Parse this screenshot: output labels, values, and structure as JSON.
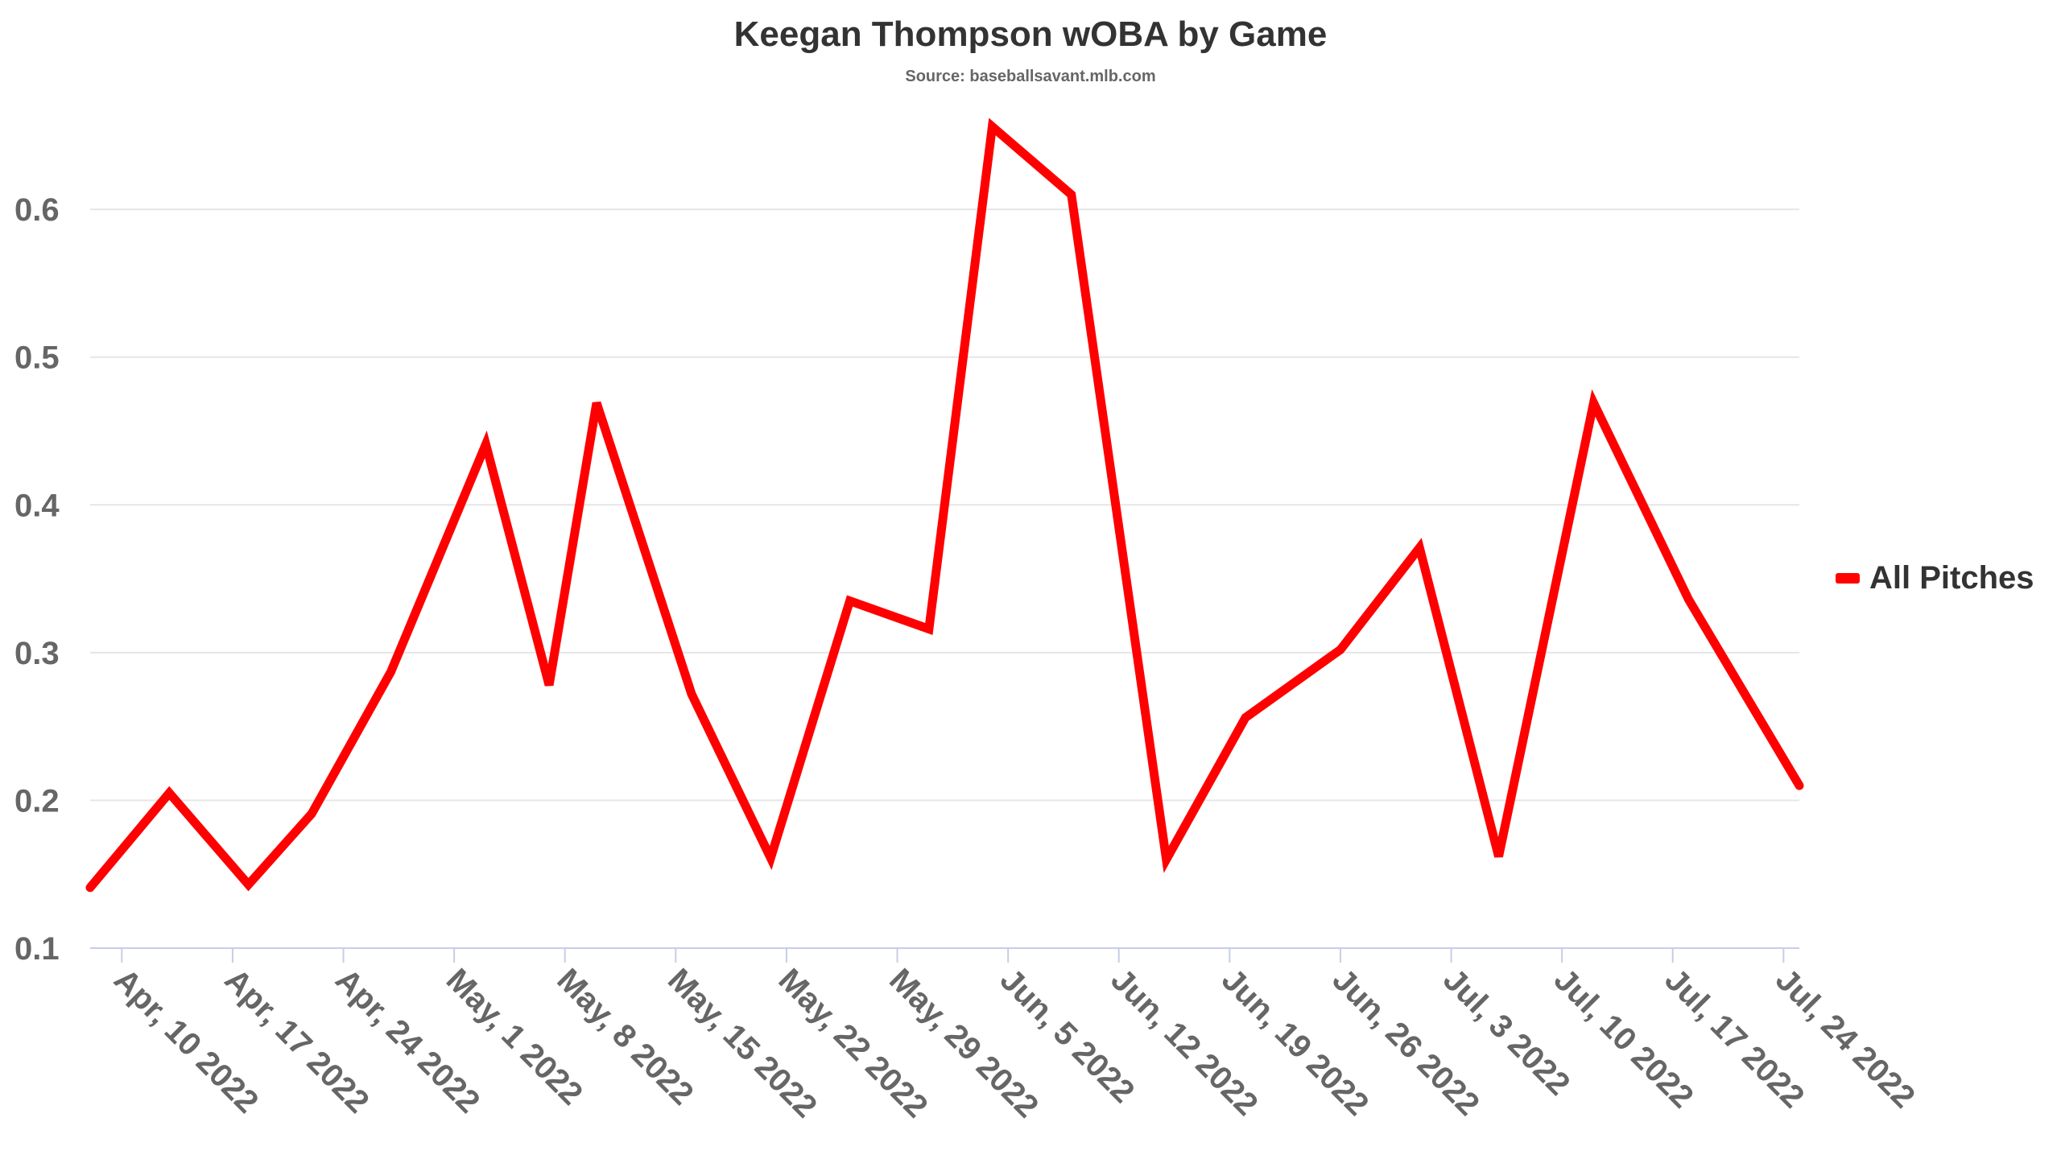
{
  "chart_data": {
    "type": "line",
    "title": "Keegan Thompson wOBA by Game",
    "subtitle": "Source: baseballsavant.mlb.com",
    "xlabel": "",
    "ylabel": "",
    "ylim": [
      0.1,
      0.66
    ],
    "y_ticks": [
      0.1,
      0.2,
      0.3,
      0.4,
      0.5,
      0.6
    ],
    "y_tick_labels": [
      "0.1",
      "0.2",
      "0.3",
      "0.4",
      "0.5",
      "0.6"
    ],
    "xlim": [
      "2022-04-08",
      "2022-07-25"
    ],
    "x_ticks": [
      "2022-04-10",
      "2022-04-17",
      "2022-04-24",
      "2022-05-01",
      "2022-05-08",
      "2022-05-15",
      "2022-05-22",
      "2022-05-29",
      "2022-06-05",
      "2022-06-12",
      "2022-06-19",
      "2022-06-26",
      "2022-07-03",
      "2022-07-10",
      "2022-07-17",
      "2022-07-24"
    ],
    "x_tick_labels": [
      "Apr, 10 2022",
      "Apr, 17 2022",
      "Apr, 24 2022",
      "May, 1 2022",
      "May, 8 2022",
      "May, 15 2022",
      "May, 22 2022",
      "May, 29 2022",
      "Jun, 5 2022",
      "Jun, 12 2022",
      "Jun, 19 2022",
      "Jun, 26 2022",
      "Jul, 3 2022",
      "Jul, 10 2022",
      "Jul, 17 2022",
      "Jul, 24 2022"
    ],
    "grid": true,
    "legend_position": "right",
    "series": [
      {
        "name": "All Pitches",
        "color": "#ff0000",
        "x": [
          "2022-04-08",
          "2022-04-13",
          "2022-04-18",
          "2022-04-22",
          "2022-04-27",
          "2022-05-03",
          "2022-05-07",
          "2022-05-10",
          "2022-05-16",
          "2022-05-21",
          "2022-05-26",
          "2022-05-31",
          "2022-06-04",
          "2022-06-09",
          "2022-06-15",
          "2022-06-20",
          "2022-06-26",
          "2022-07-01",
          "2022-07-06",
          "2022-07-12",
          "2022-07-18",
          "2022-07-25"
        ],
        "y": [
          0.141,
          0.205,
          0.143,
          0.191,
          0.287,
          0.441,
          0.278,
          0.469,
          0.272,
          0.161,
          0.335,
          0.316,
          0.656,
          0.61,
          0.16,
          0.256,
          0.302,
          0.371,
          0.162,
          0.469,
          0.336,
          0.21
        ]
      }
    ]
  }
}
